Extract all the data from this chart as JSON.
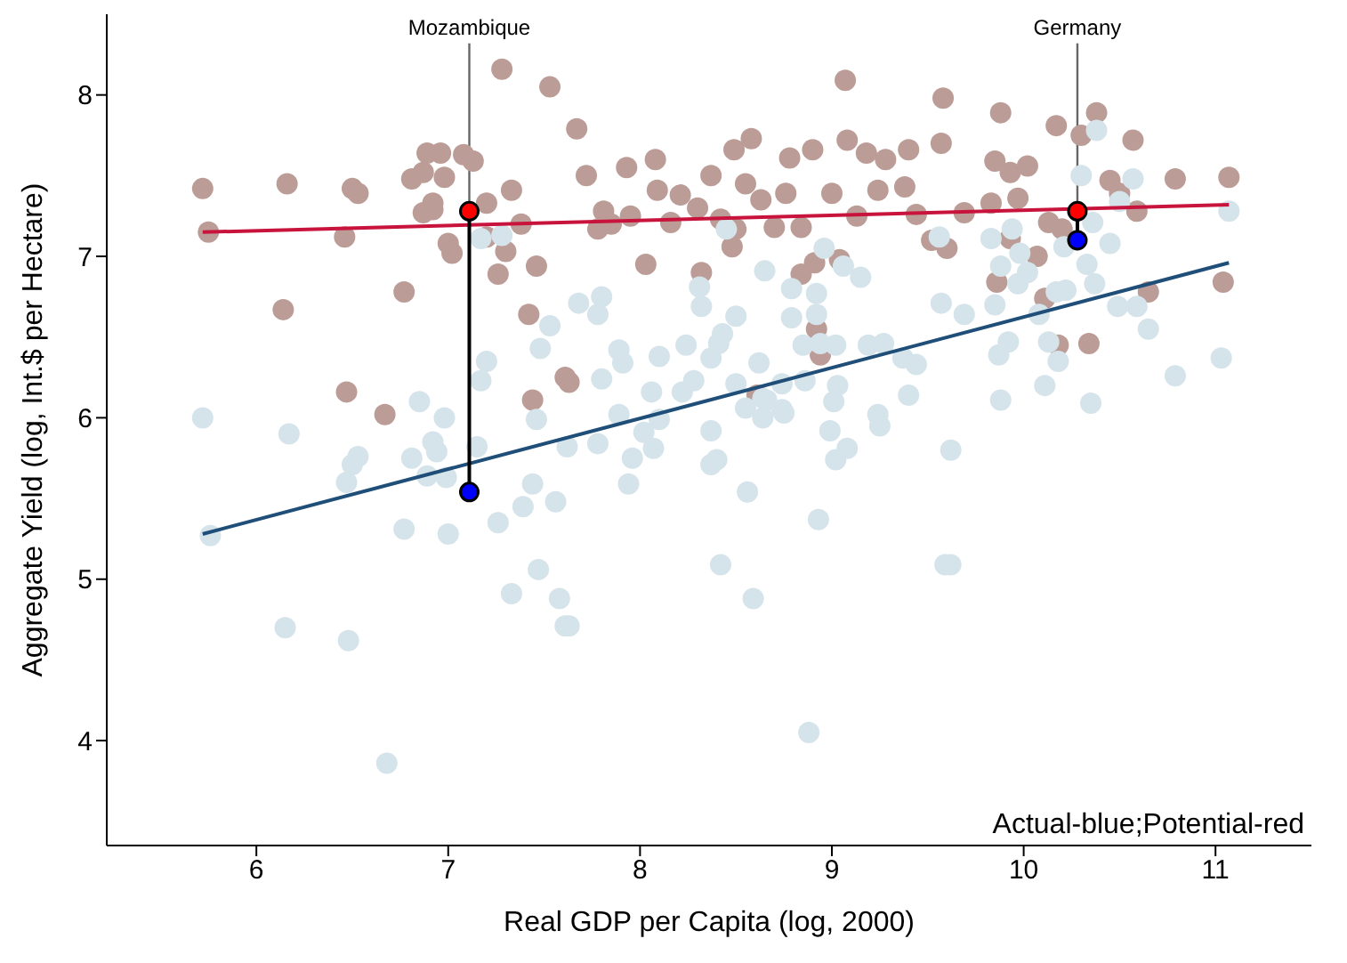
{
  "chart_data": {
    "type": "scatter",
    "xlabel": "Real GDP per Capita (log, 2000)",
    "ylabel": "Aggregate Yield (log, Int.$ per Hectare)",
    "xlim": [
      5.22,
      11.5
    ],
    "xticks": [
      6,
      7,
      8,
      9,
      10,
      11
    ],
    "ylim": [
      3.35,
      8.5
    ],
    "yticks": [
      4,
      5,
      6,
      7,
      8
    ],
    "grid": false,
    "legend": false,
    "marker": "circle",
    "annotations": [
      {
        "text": "Mozambique",
        "x": 7.11,
        "y": 7.28
      },
      {
        "text": "Germany",
        "x": 10.28,
        "y": 7.28
      },
      "Actual-blue;Potential-red"
    ],
    "series": [
      {
        "color": "#bc9c96",
        "x": [
          5.72,
          5.75,
          6.16,
          6.14,
          6.5,
          6.53,
          6.46,
          6.47,
          6.67,
          6.77,
          6.81,
          6.87,
          6.98,
          6.89,
          6.96,
          6.92,
          6.87,
          6.92,
          7.02,
          7.0,
          7.08,
          7.13,
          7.2,
          7.2,
          7.33,
          7.28,
          7.53,
          7.38,
          7.3,
          7.26,
          7.46,
          7.42,
          7.44,
          7.63,
          7.67,
          7.81,
          7.72,
          7.78,
          8.08,
          8.09,
          7.93,
          8.03,
          8.37,
          8.49,
          8.58,
          8.63,
          8.5,
          8.78,
          8.9,
          8.91,
          9.07,
          9.08,
          9.18,
          9.28,
          9.4,
          9.58,
          9.57,
          9.38,
          9.6,
          9.24,
          9.0,
          9.04,
          8.84,
          8.76,
          8.84,
          8.7,
          7.85,
          8.48,
          8.32,
          8.16,
          8.21,
          8.92,
          8.94,
          8.61,
          7.61,
          9.88,
          10.17,
          10.38,
          10.57,
          9.85,
          9.93,
          10.02,
          10.3,
          10.45,
          10.5,
          10.59,
          10.79,
          11.07,
          9.97,
          9.83,
          9.69,
          10.13,
          10.2,
          9.93,
          10.07,
          9.86,
          10.65,
          11.04,
          10.11,
          10.34,
          10.18,
          7.95,
          8.3,
          8.42,
          8.55,
          9.13,
          9.44,
          9.52
        ],
        "values": [
          7.42,
          7.15,
          7.45,
          6.67,
          7.42,
          7.39,
          7.12,
          6.16,
          6.02,
          6.78,
          7.48,
          7.52,
          7.49,
          7.64,
          7.64,
          7.33,
          7.27,
          7.29,
          7.02,
          7.08,
          7.63,
          7.59,
          7.33,
          7.12,
          7.41,
          8.16,
          8.05,
          7.2,
          7.03,
          6.89,
          6.94,
          6.64,
          6.11,
          6.22,
          7.79,
          7.28,
          7.5,
          7.17,
          7.6,
          7.41,
          7.55,
          6.95,
          7.5,
          7.66,
          7.73,
          7.35,
          7.17,
          7.61,
          7.66,
          6.96,
          8.09,
          7.72,
          7.64,
          7.6,
          7.66,
          7.98,
          7.7,
          7.43,
          7.05,
          7.41,
          7.39,
          6.98,
          6.89,
          7.39,
          7.18,
          7.18,
          7.2,
          7.06,
          6.9,
          7.21,
          7.38,
          6.55,
          6.39,
          6.14,
          6.25,
          7.89,
          7.81,
          7.89,
          7.72,
          7.59,
          7.52,
          7.56,
          7.75,
          7.47,
          7.39,
          7.28,
          7.48,
          7.49,
          7.36,
          7.33,
          7.27,
          7.21,
          7.17,
          7.11,
          7.0,
          6.84,
          6.78,
          6.84,
          6.74,
          6.46,
          6.45,
          7.25,
          7.3,
          7.23,
          7.45,
          7.25,
          7.26,
          7.1
        ]
      },
      {
        "color": "#d5e3ea",
        "x": [
          5.72,
          5.76,
          6.17,
          6.15,
          6.48,
          6.68,
          6.85,
          6.98,
          6.53,
          6.5,
          6.47,
          6.81,
          6.92,
          6.94,
          6.89,
          6.99,
          6.77,
          7.0,
          7.15,
          7.26,
          7.33,
          7.47,
          7.44,
          7.39,
          7.56,
          7.46,
          7.58,
          7.61,
          7.17,
          7.28,
          7.53,
          7.48,
          7.2,
          7.17,
          8.45,
          8.96,
          9.06,
          9.15,
          8.65,
          8.79,
          8.92,
          8.92,
          8.79,
          8.31,
          8.32,
          7.8,
          7.78,
          7.68,
          8.5,
          8.43,
          8.41,
          8.24,
          8.37,
          8.1,
          7.89,
          7.91,
          7.8,
          8.06,
          8.22,
          8.28,
          8.5,
          8.62,
          8.85,
          9.02,
          8.94,
          9.19,
          9.27,
          9.37,
          9.44,
          9.03,
          8.86,
          8.74,
          8.64,
          8.55,
          8.74,
          9.01,
          9.24,
          9.4,
          9.56,
          9.57,
          7.89,
          7.62,
          7.78,
          7.96,
          8.07,
          7.94,
          8.02,
          8.1,
          8.37,
          8.37,
          8.4,
          8.56,
          8.66,
          8.75,
          8.64,
          8.99,
          9.02,
          9.08,
          9.25,
          8.93,
          8.42,
          8.59,
          7.63,
          8.88,
          9.59,
          10.38,
          10.3,
          10.57,
          10.5,
          11.07,
          9.94,
          9.83,
          10.36,
          10.45,
          10.21,
          9.98,
          10.33,
          9.88,
          10.02,
          9.97,
          10.37,
          9.85,
          10.17,
          10.22,
          10.49,
          10.59,
          10.08,
          10.65,
          9.69,
          9.92,
          10.13,
          9.87,
          10.18,
          11.03,
          10.79,
          10.11,
          9.88,
          10.35,
          9.62,
          9.62
        ],
        "values": [
          6.0,
          5.27,
          5.9,
          4.7,
          4.62,
          3.86,
          6.1,
          6.0,
          5.76,
          5.71,
          5.6,
          5.75,
          5.85,
          5.79,
          5.64,
          5.63,
          5.31,
          5.28,
          5.82,
          5.35,
          4.91,
          5.06,
          5.59,
          5.45,
          5.48,
          5.99,
          4.88,
          4.71,
          7.11,
          7.13,
          6.57,
          6.43,
          6.35,
          6.23,
          7.17,
          7.05,
          6.94,
          6.87,
          6.91,
          6.8,
          6.77,
          6.64,
          6.62,
          6.81,
          6.69,
          6.75,
          6.64,
          6.71,
          6.63,
          6.52,
          6.46,
          6.45,
          6.37,
          6.38,
          6.42,
          6.34,
          6.24,
          6.16,
          6.16,
          6.23,
          6.21,
          6.34,
          6.45,
          6.45,
          6.46,
          6.45,
          6.46,
          6.37,
          6.33,
          6.2,
          6.23,
          6.21,
          6.12,
          6.06,
          6.05,
          6.1,
          6.02,
          6.14,
          7.12,
          6.71,
          6.02,
          5.82,
          5.84,
          5.75,
          5.81,
          5.59,
          5.91,
          5.99,
          5.92,
          5.71,
          5.74,
          5.54,
          6.11,
          6.03,
          6.0,
          5.92,
          5.74,
          5.81,
          5.95,
          5.37,
          5.09,
          4.88,
          4.71,
          4.05,
          5.09,
          7.78,
          7.5,
          7.48,
          7.34,
          7.28,
          7.17,
          7.11,
          7.21,
          7.08,
          7.06,
          7.02,
          6.95,
          6.94,
          6.9,
          6.83,
          6.83,
          6.7,
          6.78,
          6.79,
          6.69,
          6.69,
          6.64,
          6.55,
          6.64,
          6.47,
          6.47,
          6.39,
          6.35,
          6.37,
          6.26,
          6.2,
          6.11,
          6.09,
          5.8,
          5.09
        ]
      },
      {
        "type": "line",
        "marker": "none",
        "color": "#c8143c",
        "x": [
          5.72,
          11.07
        ],
        "values": [
          7.15,
          7.32
        ]
      },
      {
        "type": "line",
        "marker": "none",
        "color": "#1f4e79",
        "x": [
          5.72,
          11.07
        ],
        "values": [
          5.28,
          6.96
        ]
      },
      {
        "type": "line",
        "marker": "none",
        "color": "#000000",
        "x": [
          7.11,
          7.11
        ],
        "values": [
          7.28,
          5.54
        ]
      },
      {
        "type": "line",
        "marker": "none",
        "color": "#000000",
        "x": [
          10.28,
          10.28
        ],
        "values": [
          7.28,
          7.1
        ]
      },
      {
        "color": "#ff0000",
        "x": [
          7.11,
          10.28
        ],
        "values": [
          7.28,
          7.28
        ]
      },
      {
        "color": "#0000ff",
        "x": [
          7.11,
          10.28
        ],
        "values": [
          5.54,
          7.1
        ]
      }
    ]
  }
}
